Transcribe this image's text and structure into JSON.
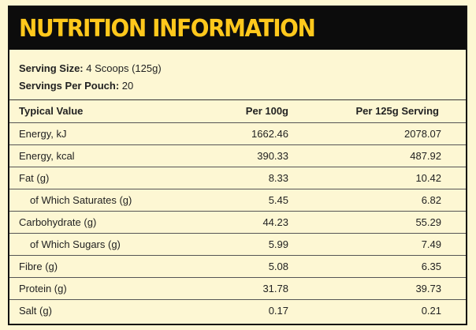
{
  "header": {
    "title": "NUTRITION INFORMATION"
  },
  "serving": {
    "size_label": "Serving Size:",
    "size_value": "4 Scoops (125g)",
    "per_pouch_label": "Servings Per Pouch:",
    "per_pouch_value": "20"
  },
  "table": {
    "headers": [
      "Typical Value",
      "Per 100g",
      "Per 125g Serving"
    ],
    "rows": [
      {
        "name": "Energy, kJ",
        "per100": "1662.46",
        "perServing": "2078.07",
        "sub": false
      },
      {
        "name": "Energy, kcal",
        "per100": "390.33",
        "perServing": "487.92",
        "sub": false
      },
      {
        "name": "Fat (g)",
        "per100": "8.33",
        "perServing": "10.42",
        "sub": false
      },
      {
        "name": "of Which Saturates (g)",
        "per100": "5.45",
        "perServing": "6.82",
        "sub": true
      },
      {
        "name": "Carbohydrate (g)",
        "per100": "44.23",
        "perServing": "55.29",
        "sub": false
      },
      {
        "name": "of Which Sugars (g)",
        "per100": "5.99",
        "perServing": "7.49",
        "sub": true
      },
      {
        "name": "Fibre (g)",
        "per100": "5.08",
        "perServing": "6.35",
        "sub": false
      },
      {
        "name": "Protein (g)",
        "per100": "31.78",
        "perServing": "39.73",
        "sub": false
      },
      {
        "name": "Salt (g)",
        "per100": "0.17",
        "perServing": "0.21",
        "sub": false
      }
    ]
  },
  "colors": {
    "accent": "#ffc81c",
    "header_bg": "#0c0c0c",
    "panel_bg": "#fdf7d3"
  }
}
